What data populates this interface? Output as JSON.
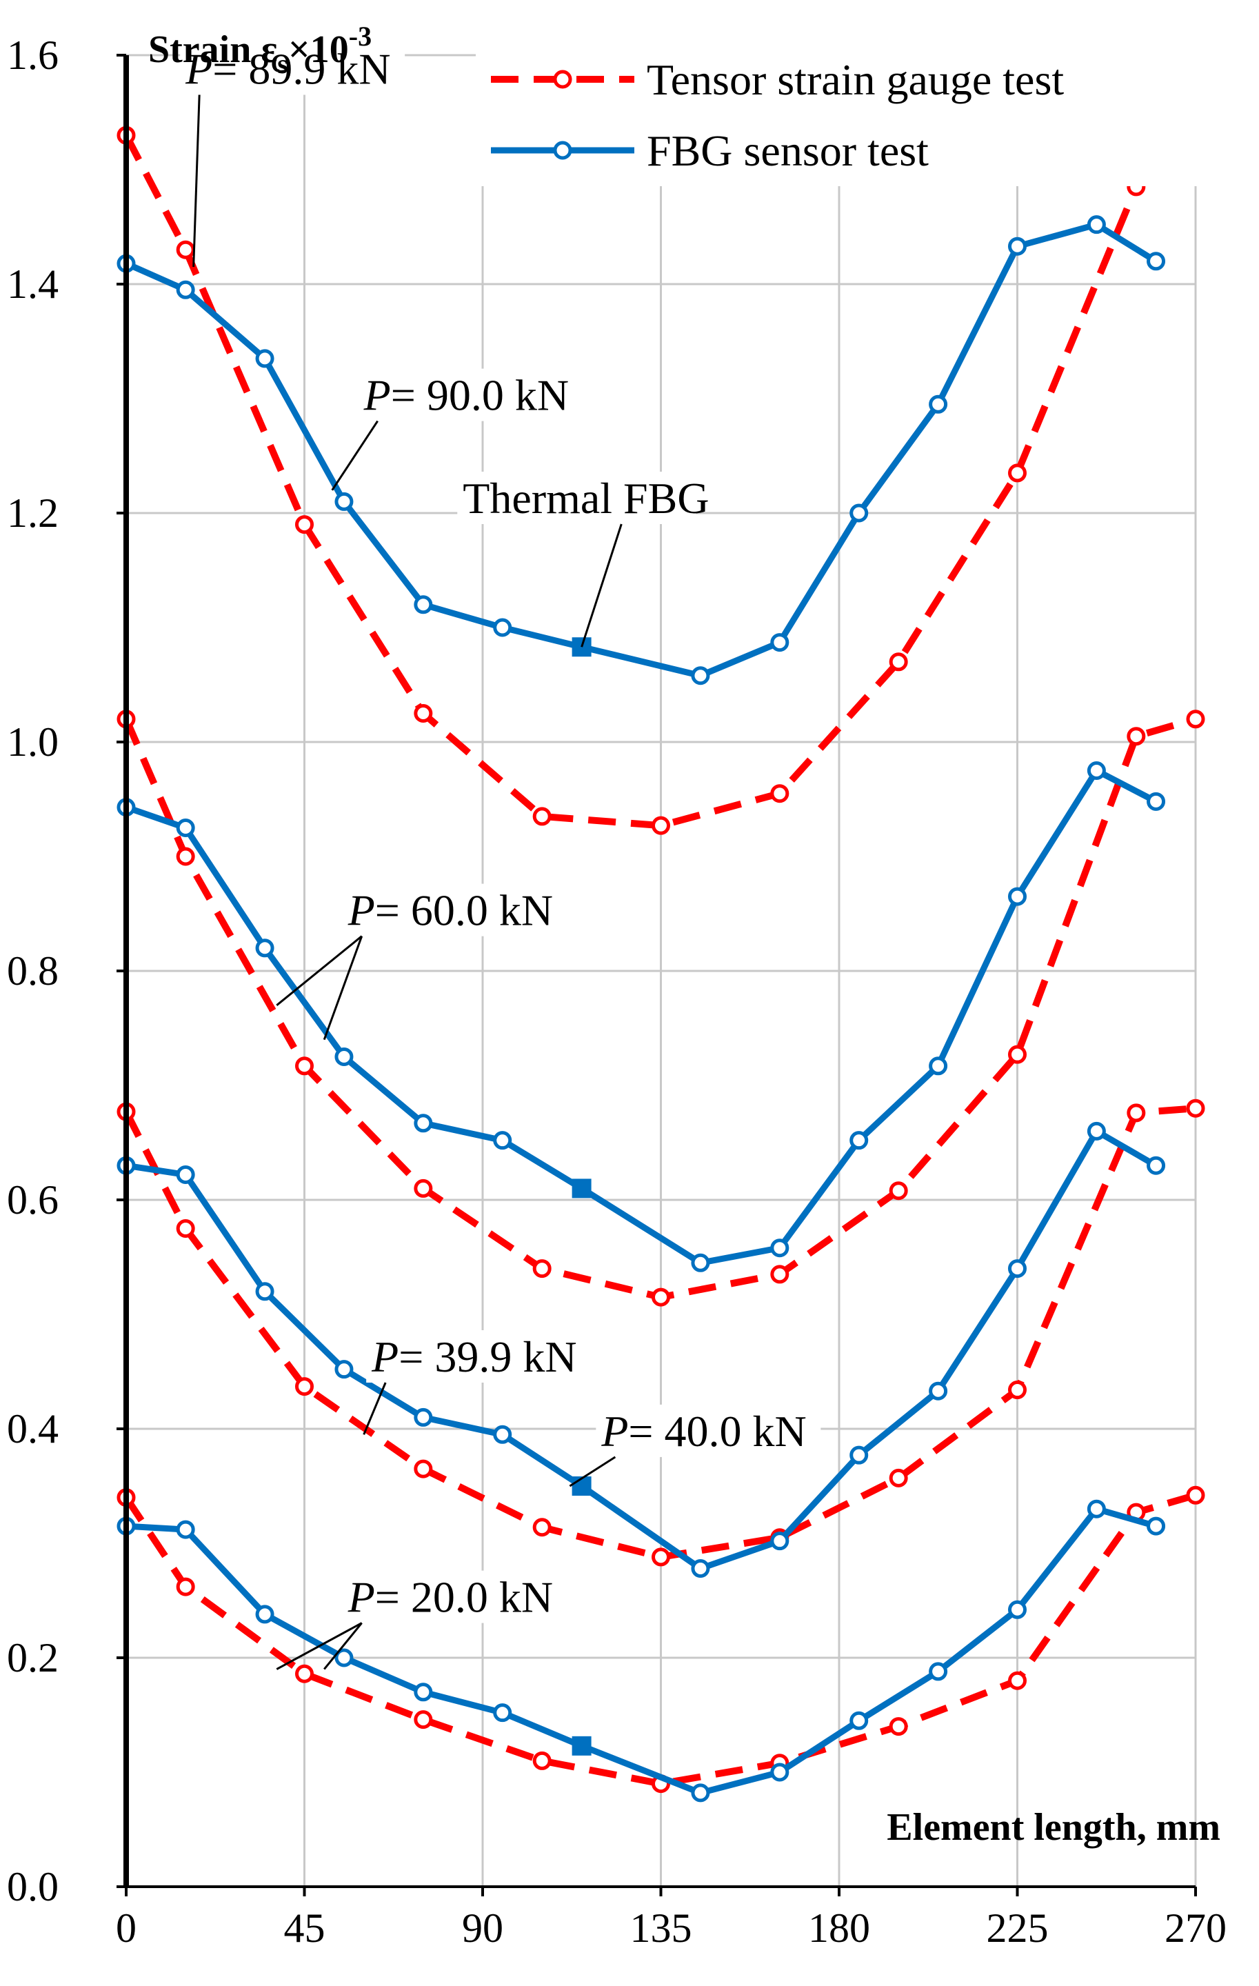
{
  "chart_data": {
    "type": "line",
    "title": "",
    "ylabel": "Strain εs×10-3",
    "ylabel_parts": {
      "base": "Strain ε",
      "sub": "s",
      "mid": "×10",
      "sup": "-3"
    },
    "xlabel": "Element length, mm",
    "xlim": [
      0,
      270
    ],
    "ylim": [
      0.0,
      1.6
    ],
    "xticks": [
      0,
      45,
      90,
      135,
      180,
      225,
      270
    ],
    "yticks": [
      0.0,
      0.2,
      0.4,
      0.6,
      0.8,
      1.0,
      1.2,
      1.4,
      1.6
    ],
    "grid": true,
    "legend_position": "top-right",
    "legend": [
      {
        "label": "Tensor strain gauge test",
        "style": "tensor"
      },
      {
        "label": "FBG sensor test",
        "style": "fbg"
      }
    ],
    "series": [
      {
        "name": "Tensor strain gauge test",
        "style": "tensor",
        "x": [
          0,
          15,
          45,
          75,
          105,
          135,
          165,
          195,
          225,
          255,
          270
        ],
        "y": [
          1.53,
          1.43,
          1.19,
          1.025,
          0.935,
          0.927,
          0.955,
          1.07,
          1.235,
          1.485,
          1.53
        ]
      },
      {
        "name": "FBG sensor test",
        "style": "fbg",
        "x": [
          0,
          15,
          35,
          55,
          75,
          95,
          115,
          145,
          165,
          185,
          205,
          225,
          245,
          260
        ],
        "y": [
          1.418,
          1.395,
          1.335,
          1.21,
          1.12,
          1.1,
          1.083,
          1.058,
          1.087,
          1.2,
          1.295,
          1.433,
          1.452,
          1.42
        ],
        "filled_index": 6
      },
      {
        "name": "Tensor strain gauge test",
        "style": "tensor",
        "x": [
          0,
          15,
          45,
          75,
          105,
          135,
          165,
          195,
          225,
          255,
          270
        ],
        "y": [
          1.02,
          0.9,
          0.717,
          0.61,
          0.54,
          0.515,
          0.535,
          0.608,
          0.727,
          1.005,
          1.02
        ]
      },
      {
        "name": "FBG sensor test",
        "style": "fbg",
        "x": [
          0,
          15,
          35,
          55,
          75,
          95,
          115,
          145,
          165,
          185,
          205,
          225,
          245,
          260
        ],
        "y": [
          0.943,
          0.925,
          0.82,
          0.725,
          0.667,
          0.652,
          0.61,
          0.545,
          0.558,
          0.652,
          0.717,
          0.865,
          0.975,
          0.948
        ],
        "filled_index": 6
      },
      {
        "name": "Tensor strain gauge test",
        "style": "tensor",
        "x": [
          0,
          15,
          45,
          75,
          105,
          135,
          165,
          195,
          225,
          255,
          270
        ],
        "y": [
          0.677,
          0.575,
          0.437,
          0.365,
          0.314,
          0.288,
          0.305,
          0.357,
          0.434,
          0.676,
          0.68
        ]
      },
      {
        "name": "FBG sensor test",
        "style": "fbg",
        "x": [
          0,
          15,
          35,
          55,
          75,
          95,
          115,
          145,
          165,
          185,
          205,
          225,
          245,
          260
        ],
        "y": [
          0.63,
          0.622,
          0.52,
          0.452,
          0.41,
          0.395,
          0.35,
          0.278,
          0.302,
          0.377,
          0.433,
          0.54,
          0.66,
          0.63
        ],
        "filled_index": 6
      },
      {
        "name": "Tensor strain gauge test",
        "style": "tensor",
        "x": [
          0,
          15,
          45,
          75,
          105,
          135,
          165,
          195,
          225,
          255,
          270
        ],
        "y": [
          0.34,
          0.262,
          0.186,
          0.146,
          0.11,
          0.09,
          0.108,
          0.14,
          0.18,
          0.327,
          0.342
        ]
      },
      {
        "name": "FBG sensor test",
        "style": "fbg",
        "x": [
          0,
          15,
          35,
          55,
          75,
          95,
          115,
          145,
          165,
          185,
          205,
          225,
          245,
          260
        ],
        "y": [
          0.315,
          0.312,
          0.238,
          0.2,
          0.17,
          0.152,
          0.123,
          0.082,
          0.1,
          0.145,
          0.188,
          0.242,
          0.33,
          0.315
        ],
        "filled_index": 6
      }
    ],
    "annotations": [
      {
        "id": "p899",
        "prefix": "P",
        "text": "= 89.9 kN",
        "x": 15,
        "y": 1.575,
        "targets": [
          [
            17,
            1.415
          ]
        ]
      },
      {
        "id": "p900",
        "prefix": "P",
        "text": "= 90.0 kN",
        "x": 60,
        "y": 1.29,
        "targets": [
          [
            52,
            1.22
          ]
        ]
      },
      {
        "id": "thermal",
        "prefix": "",
        "text": "Thermal FBG",
        "x": 85,
        "y": 1.2,
        "targets": [
          [
            115,
            1.083
          ]
        ]
      },
      {
        "id": "p600",
        "prefix": "P",
        "text": "= 60.0 kN",
        "x": 56,
        "y": 0.84,
        "targets": [
          [
            38,
            0.77
          ],
          [
            50,
            0.74
          ]
        ]
      },
      {
        "id": "p399",
        "prefix": "P",
        "text": "= 39.9 kN",
        "x": 62,
        "y": 0.45,
        "targets": [
          [
            60,
            0.395
          ]
        ]
      },
      {
        "id": "p400",
        "prefix": "P",
        "text": "= 40.0 kN",
        "x": 120,
        "y": 0.385,
        "targets": [
          [
            112,
            0.35
          ]
        ]
      },
      {
        "id": "p200",
        "prefix": "P",
        "text": "= 20.0 kN",
        "x": 56,
        "y": 0.24,
        "targets": [
          [
            38,
            0.19
          ],
          [
            50,
            0.19
          ]
        ]
      }
    ]
  }
}
